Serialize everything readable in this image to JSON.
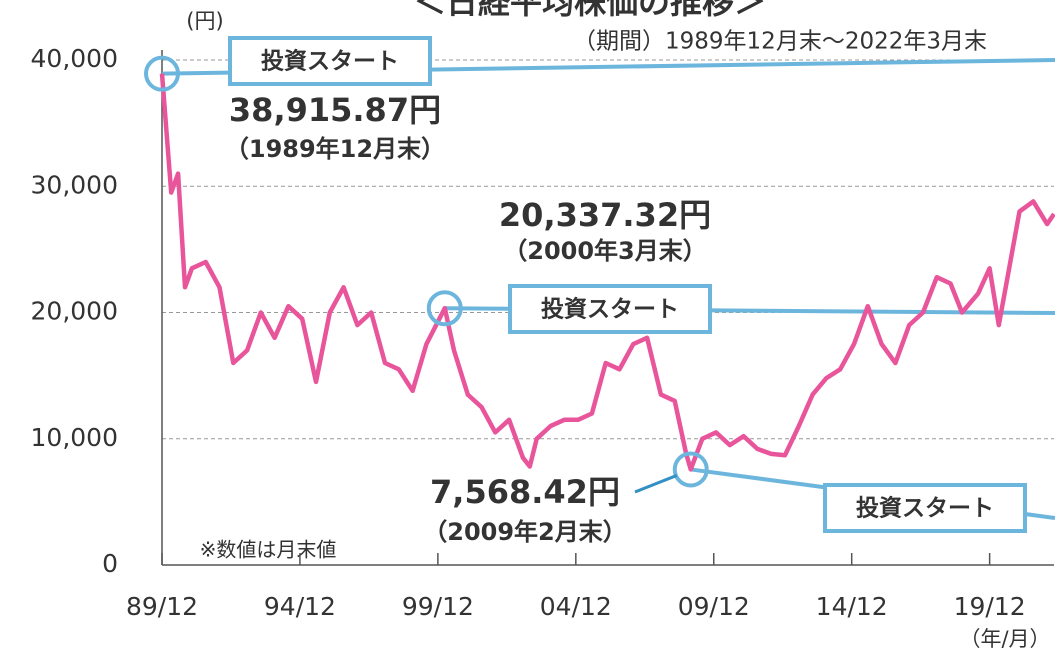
{
  "chart_data": {
    "type": "line",
    "title": "＜日経平均株価の推移＞",
    "subtitle": "（期間）1989年12月末～2022年3月末",
    "y_label": "(円)",
    "x_label": "（年/月）",
    "note": "※数値は月末値",
    "xlim": [
      1989.917,
      2022.25
    ],
    "xticks": [
      {
        "value": 1989.917,
        "label": "89/12"
      },
      {
        "value": 1994.917,
        "label": "94/12"
      },
      {
        "value": 1999.917,
        "label": "99/12"
      },
      {
        "value": 2004.917,
        "label": "04/12"
      },
      {
        "value": 2009.917,
        "label": "09/12"
      },
      {
        "value": 2014.917,
        "label": "14/12"
      },
      {
        "value": 2019.917,
        "label": "19/12"
      }
    ],
    "ylim": [
      0,
      40000
    ],
    "yticks": [
      0,
      {
        "value": 10000,
        "label": "10,000"
      },
      {
        "value": 20000,
        "label": "20,000"
      },
      {
        "value": 30000,
        "label": "30,000"
      },
      {
        "value": 40000,
        "label": "40,000"
      }
    ],
    "grid": true,
    "series": [
      {
        "name": "日経平均株価",
        "color": "#e8559a",
        "x": [
          1989.917,
          1990.25,
          1990.5,
          1990.75,
          1991.0,
          1991.5,
          1992.0,
          1992.5,
          1993.0,
          1993.5,
          1994.0,
          1994.5,
          1995.0,
          1995.5,
          1996.0,
          1996.5,
          1997.0,
          1997.5,
          1998.0,
          1998.5,
          1999.0,
          1999.5,
          2000.167,
          2000.5,
          2001.0,
          2001.5,
          2002.0,
          2002.5,
          2003.0,
          2003.25,
          2003.5,
          2004.0,
          2004.5,
          2005.0,
          2005.5,
          2006.0,
          2006.5,
          2007.0,
          2007.5,
          2008.0,
          2008.5,
          2008.917,
          2009.083,
          2009.5,
          2010.0,
          2010.5,
          2011.0,
          2011.5,
          2012.0,
          2012.5,
          2013.0,
          2013.5,
          2014.0,
          2014.5,
          2015.0,
          2015.5,
          2016.0,
          2016.5,
          2017.0,
          2017.5,
          2018.0,
          2018.5,
          2018.917,
          2019.5,
          2019.917,
          2020.25,
          2020.5,
          2021.0,
          2021.5,
          2022.0,
          2022.25
        ],
        "values": [
          38915.87,
          29500,
          31000,
          22000,
          23500,
          24000,
          22000,
          16000,
          17000,
          20000,
          18000,
          20500,
          19500,
          14500,
          20000,
          22000,
          19000,
          20000,
          16000,
          15500,
          13800,
          17500,
          20337.32,
          17000,
          13500,
          12500,
          10500,
          11500,
          8500,
          7800,
          10000,
          11000,
          11500,
          11500,
          12000,
          16000,
          15500,
          17500,
          18000,
          13500,
          13000,
          8800,
          7568.42,
          10000,
          10500,
          9500,
          10200,
          9200,
          8800,
          8700,
          11000,
          13500,
          14800,
          15500,
          17500,
          20500,
          17500,
          16000,
          19000,
          20000,
          22800,
          22300,
          20000,
          21500,
          23500,
          19000,
          22000,
          28000,
          28800,
          27000,
          27800
        ]
      }
    ],
    "annotations": [
      {
        "label": "投資スタート",
        "value_text": "38,915.87円",
        "date_text": "（1989年12月末）"
      },
      {
        "label": "投資スタート",
        "value_text": "20,337.32円",
        "date_text": "（2000年3月末）"
      },
      {
        "label": "投資スタート",
        "value_text": "7,568.42円",
        "date_text": "（2009年2月末）"
      }
    ]
  }
}
